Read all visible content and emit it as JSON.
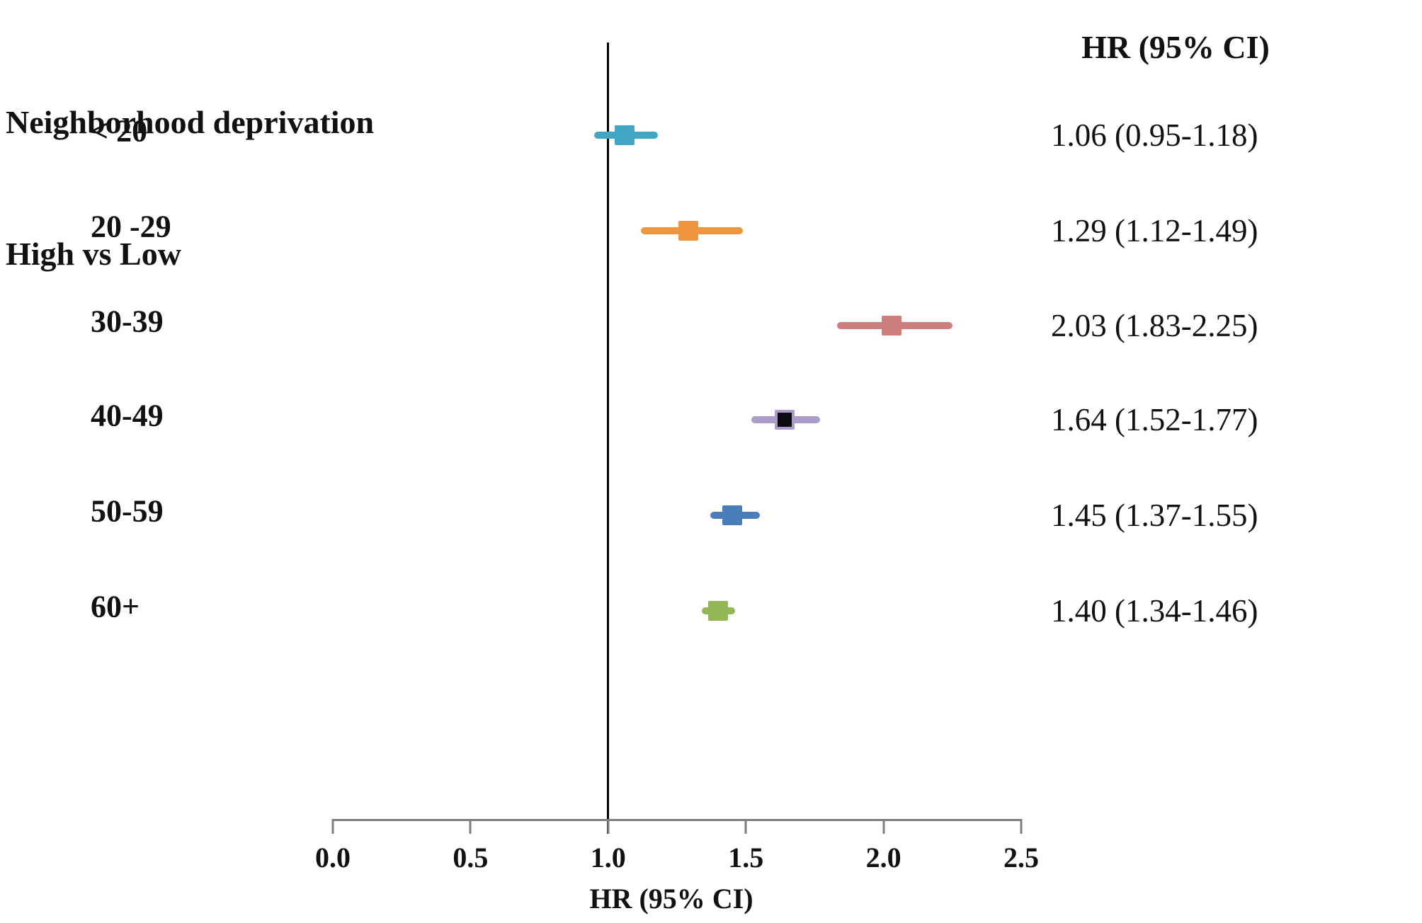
{
  "title": {
    "line1": "Neighborhood deprivation",
    "line2": "High vs Low"
  },
  "columns": {
    "hr_header": "HR (95% CI)"
  },
  "axis": {
    "title": "HR (95% CI)",
    "min": 0,
    "max": 2.5,
    "tick_values": [
      0,
      0.5,
      1.0,
      1.5,
      2.0,
      2.5
    ],
    "tick_labels": [
      "0.0",
      "0.5",
      "1.0",
      "1.5",
      "2.0",
      "2.5"
    ],
    "reference_value": 1.0,
    "axis_color": "#7f7f7f",
    "reference_line_color": "#000000"
  },
  "chart_data": {
    "type": "forest",
    "title": "Neighborhood deprivation High vs Low",
    "xlabel": "HR (95% CI)",
    "xlim": [
      0,
      2.5
    ],
    "x_ticks": [
      0,
      0.5,
      1.0,
      1.5,
      2.0,
      2.5
    ],
    "reference_line": 1.0,
    "grid": false,
    "legend": "none",
    "categories": [
      "< 20",
      "20 -29",
      "30-39",
      "40-49",
      "50-59",
      "60+"
    ],
    "series": [
      {
        "name": "HR",
        "values": [
          1.06,
          1.29,
          2.03,
          1.64,
          1.45,
          1.4
        ]
      },
      {
        "name": "CI lower",
        "values": [
          0.95,
          1.12,
          1.83,
          1.52,
          1.37,
          1.34
        ]
      },
      {
        "name": "CI upper",
        "values": [
          1.18,
          1.49,
          2.25,
          1.77,
          1.55,
          1.46
        ]
      }
    ],
    "rows": [
      {
        "category": "< 20",
        "hr": 1.06,
        "ci_low": 0.95,
        "ci_high": 1.18,
        "label": "1.06 (0.95-1.18)",
        "line_color": "#41A7C5",
        "marker_fill": "#41A7C5",
        "marker_border": "#41A7C5"
      },
      {
        "category": "20 -29",
        "hr": 1.29,
        "ci_low": 1.12,
        "ci_high": 1.49,
        "label": "1.29 (1.12-1.49)",
        "line_color": "#F0953F",
        "marker_fill": "#F0953F",
        "marker_border": "#F0953F"
      },
      {
        "category": "30-39",
        "hr": 2.03,
        "ci_low": 1.83,
        "ci_high": 2.25,
        "label": "2.03 (1.83-2.25)",
        "line_color": "#CC7F7D",
        "marker_fill": "#CC7F7D",
        "marker_border": "#CC7F7D"
      },
      {
        "category": "40-49",
        "hr": 1.64,
        "ci_low": 1.52,
        "ci_high": 1.77,
        "label": "1.64 (1.52-1.77)",
        "line_color": "#AC9CC9",
        "marker_fill": "#0B0B10",
        "marker_border": "#AC9CC9"
      },
      {
        "category": "50-59",
        "hr": 1.45,
        "ci_low": 1.37,
        "ci_high": 1.55,
        "label": "1.45 (1.37-1.55)",
        "line_color": "#4A7EBB",
        "marker_fill": "#4A7EBB",
        "marker_border": "#4A7EBB"
      },
      {
        "category": "60+",
        "hr": 1.4,
        "ci_low": 1.34,
        "ci_high": 1.46,
        "label": "1.40 (1.34-1.46)",
        "line_color": "#92B754",
        "marker_fill": "#92B754",
        "marker_border": "#92B754"
      }
    ]
  }
}
